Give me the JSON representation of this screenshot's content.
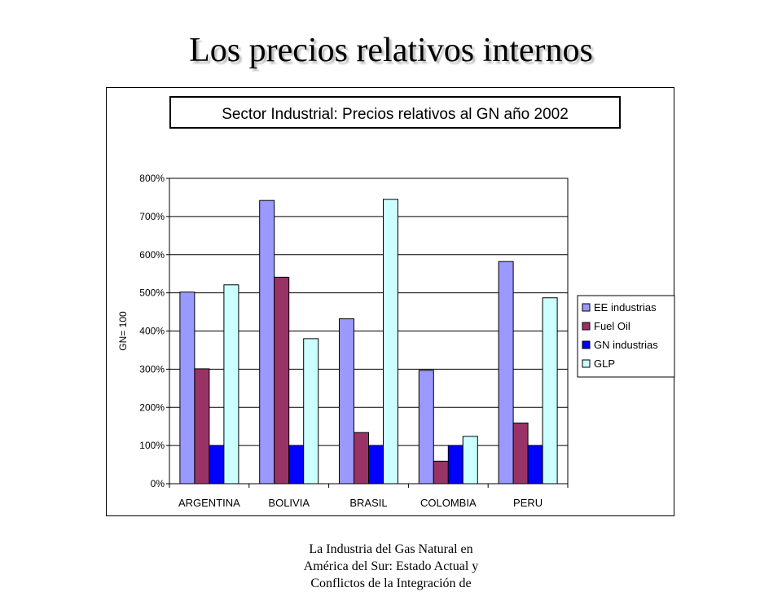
{
  "slide": {
    "title": "Los precios relativos internos",
    "footer_line1": "La Industria del Gas Natural en",
    "footer_line2": "América del Sur: Estado Actual y",
    "footer_line3": "Conflictos de la Integración de"
  },
  "chart_data": {
    "type": "bar",
    "title": "Sector Industrial: Precios relativos al GN año 2002",
    "xlabel": "",
    "ylabel": "GN= 100",
    "ylim": [
      0,
      800
    ],
    "yticks": [
      0,
      100,
      200,
      300,
      400,
      500,
      600,
      700,
      800
    ],
    "ytick_suffix": "%",
    "grid": true,
    "legend_position": "right",
    "categories": [
      "ARGENTINA",
      "BOLIVIA",
      "BRASIL",
      "COLOMBIA",
      "PERU"
    ],
    "series": [
      {
        "name": "EE industrias",
        "color": "#9999ff",
        "values": [
          502,
          742,
          432,
          297,
          582
        ]
      },
      {
        "name": "Fuel Oil",
        "color": "#993366",
        "values": [
          301,
          541,
          134,
          59,
          159
        ]
      },
      {
        "name": "GN industrias",
        "color": "#0000ff",
        "values": [
          100,
          100,
          100,
          100,
          100
        ]
      },
      {
        "name": "GLP",
        "color": "#ccffff",
        "values": [
          521,
          380,
          745,
          124,
          487
        ]
      }
    ]
  }
}
